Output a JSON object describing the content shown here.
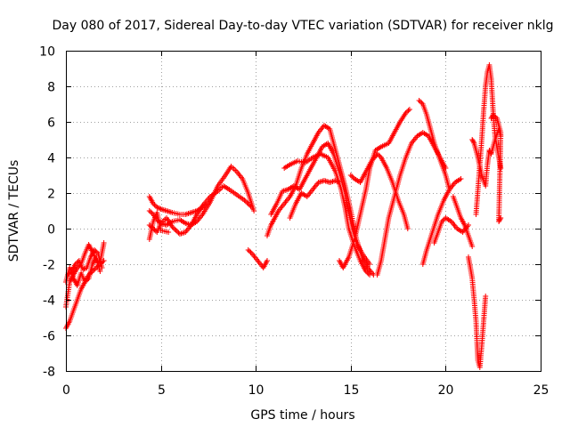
{
  "chart_data": {
    "type": "scatter",
    "title": "Day 080 of 2017, Sidereal Day-to-day VTEC variation (SDTVAR) for receiver nklg",
    "xlabel": "GPS time / hours",
    "ylabel": "SDTVAR / TECUs",
    "xlim": [
      0,
      25
    ],
    "ylim": [
      -8,
      10
    ],
    "xticks": [
      0,
      5,
      10,
      15,
      20,
      25
    ],
    "yticks": [
      -8,
      -6,
      -4,
      -2,
      0,
      2,
      4,
      6,
      8,
      10
    ],
    "grid": true,
    "marker": "+",
    "color": "#ff0000",
    "series": [
      {
        "name": "SDTVAR",
        "color": "#ff0000",
        "tracks": [
          [
            [
              0.0,
              -5.6
            ],
            [
              0.2,
              -5.2
            ],
            [
              0.4,
              -4.6
            ],
            [
              0.6,
              -4.0
            ],
            [
              0.8,
              -3.4
            ],
            [
              1.0,
              -3.0
            ],
            [
              1.2,
              -2.6
            ],
            [
              1.4,
              -2.4
            ],
            [
              1.6,
              -2.2
            ],
            [
              1.8,
              -2.0
            ],
            [
              2.0,
              -1.8
            ]
          ],
          [
            [
              0.0,
              -4.4
            ],
            [
              0.2,
              -3.0
            ],
            [
              0.4,
              -2.6
            ],
            [
              0.6,
              -2.2
            ],
            [
              0.8,
              -2.0
            ],
            [
              1.0,
              -1.4
            ],
            [
              1.2,
              -0.9
            ],
            [
              1.4,
              -1.3
            ],
            [
              1.6,
              -1.8
            ],
            [
              1.8,
              -1.9
            ],
            [
              2.0,
              -0.8
            ]
          ],
          [
            [
              0.0,
              -3.0
            ],
            [
              0.2,
              -2.2
            ],
            [
              0.4,
              -2.8
            ],
            [
              0.6,
              -3.2
            ],
            [
              0.8,
              -2.5
            ],
            [
              1.0,
              -3.0
            ],
            [
              1.2,
              -2.8
            ],
            [
              1.4,
              -2.0
            ],
            [
              1.6,
              -1.6
            ],
            [
              1.8,
              -2.4
            ]
          ],
          [
            [
              0.1,
              -2.6
            ],
            [
              0.3,
              -2.4
            ],
            [
              0.5,
              -2.0
            ],
            [
              0.7,
              -1.8
            ],
            [
              0.9,
              -2.3
            ],
            [
              1.1,
              -2.2
            ],
            [
              1.3,
              -1.6
            ],
            [
              1.5,
              -1.2
            ],
            [
              1.7,
              -1.4
            ],
            [
              1.9,
              -2.2
            ]
          ],
          [
            [
              4.4,
              1.8
            ],
            [
              4.6,
              1.4
            ],
            [
              4.8,
              1.2
            ],
            [
              5.0,
              1.1
            ],
            [
              5.3,
              1.0
            ],
            [
              5.6,
              0.9
            ],
            [
              6.0,
              0.8
            ],
            [
              6.3,
              0.8
            ],
            [
              6.6,
              0.9
            ],
            [
              6.9,
              1.0
            ],
            [
              7.2,
              1.2
            ],
            [
              7.4,
              1.4
            ]
          ],
          [
            [
              4.4,
              1.0
            ],
            [
              4.6,
              0.8
            ],
            [
              4.8,
              0.5
            ],
            [
              5.0,
              0.3
            ],
            [
              5.3,
              0.2
            ],
            [
              5.6,
              0.4
            ],
            [
              6.0,
              0.5
            ],
            [
              6.3,
              0.3
            ],
            [
              6.6,
              0.2
            ],
            [
              6.9,
              0.4
            ],
            [
              7.2,
              0.8
            ],
            [
              7.6,
              1.5
            ],
            [
              8.0,
              2.4
            ],
            [
              8.4,
              3.0
            ],
            [
              8.7,
              3.5
            ],
            [
              9.0,
              3.2
            ],
            [
              9.3,
              2.8
            ],
            [
              9.6,
              2.0
            ],
            [
              9.9,
              1.0
            ]
          ],
          [
            [
              4.4,
              0.2
            ],
            [
              4.6,
              0.0
            ],
            [
              4.8,
              -0.2
            ],
            [
              5.0,
              0.3
            ],
            [
              5.3,
              0.6
            ],
            [
              5.6,
              0.1
            ],
            [
              6.0,
              -0.3
            ],
            [
              6.3,
              -0.2
            ],
            [
              6.6,
              0.2
            ],
            [
              6.9,
              0.8
            ],
            [
              7.2,
              1.3
            ],
            [
              7.6,
              1.8
            ],
            [
              8.0,
              2.1
            ],
            [
              8.3,
              2.4
            ],
            [
              8.6,
              2.2
            ],
            [
              9.0,
              1.9
            ],
            [
              9.4,
              1.6
            ],
            [
              9.8,
              1.2
            ]
          ],
          [
            [
              4.4,
              -0.6
            ],
            [
              4.6,
              0.4
            ],
            [
              4.8,
              0.9
            ],
            [
              5.0,
              -0.1
            ],
            [
              5.4,
              -0.2
            ]
          ],
          [
            [
              9.6,
              -1.2
            ],
            [
              9.8,
              -1.4
            ],
            [
              10.4,
              -2.2
            ],
            [
              10.6,
              -1.8
            ]
          ],
          [
            [
              10.6,
              -0.4
            ],
            [
              10.8,
              0.2
            ],
            [
              11.0,
              0.6
            ],
            [
              11.2,
              1.0
            ],
            [
              11.5,
              1.4
            ],
            [
              11.8,
              1.8
            ],
            [
              12.1,
              2.4
            ],
            [
              12.4,
              3.4
            ],
            [
              12.7,
              4.2
            ],
            [
              13.0,
              4.8
            ],
            [
              13.3,
              5.4
            ],
            [
              13.6,
              5.8
            ],
            [
              13.9,
              5.6
            ],
            [
              14.1,
              4.8
            ],
            [
              14.4,
              3.6
            ],
            [
              14.7,
              2.4
            ],
            [
              15.0,
              1.0
            ],
            [
              15.3,
              -0.6
            ],
            [
              15.6,
              -1.6
            ],
            [
              15.9,
              -2.2
            ],
            [
              16.2,
              -2.6
            ]
          ],
          [
            [
              10.8,
              0.8
            ],
            [
              11.1,
              1.4
            ],
            [
              11.4,
              2.1
            ],
            [
              11.7,
              2.2
            ],
            [
              12.0,
              2.4
            ],
            [
              12.3,
              2.2
            ],
            [
              12.6,
              2.8
            ],
            [
              12.9,
              3.4
            ],
            [
              13.2,
              4.0
            ],
            [
              13.5,
              4.6
            ],
            [
              13.8,
              4.8
            ],
            [
              14.1,
              4.2
            ],
            [
              14.4,
              3.2
            ],
            [
              14.7,
              2.0
            ],
            [
              15.0,
              0.4
            ],
            [
              15.3,
              -0.8
            ],
            [
              15.6,
              -1.4
            ],
            [
              16.0,
              -2.0
            ]
          ],
          [
            [
              11.8,
              0.6
            ],
            [
              12.1,
              1.4
            ],
            [
              12.4,
              2.0
            ],
            [
              12.7,
              1.8
            ],
            [
              13.0,
              2.2
            ],
            [
              13.3,
              2.6
            ],
            [
              13.6,
              2.7
            ],
            [
              13.9,
              2.6
            ],
            [
              14.2,
              2.7
            ],
            [
              14.4,
              2.6
            ]
          ],
          [
            [
              11.5,
              3.4
            ],
            [
              11.8,
              3.6
            ],
            [
              12.2,
              3.8
            ],
            [
              12.6,
              3.7
            ],
            [
              13.0,
              4.0
            ],
            [
              13.4,
              4.2
            ],
            [
              13.8,
              4.0
            ],
            [
              14.2,
              3.2
            ],
            [
              14.5,
              2.2
            ],
            [
              14.7,
              1.2
            ],
            [
              14.9,
              0.0
            ],
            [
              15.2,
              -1.0
            ],
            [
              15.5,
              -1.8
            ],
            [
              15.8,
              -2.4
            ],
            [
              16.0,
              -2.6
            ]
          ],
          [
            [
              14.4,
              -1.8
            ],
            [
              14.6,
              -2.2
            ],
            [
              14.9,
              -1.6
            ],
            [
              15.2,
              -0.6
            ],
            [
              15.5,
              0.8
            ],
            [
              15.8,
              2.2
            ],
            [
              16.0,
              3.4
            ],
            [
              16.3,
              4.4
            ],
            [
              16.6,
              4.6
            ],
            [
              17.0,
              4.8
            ],
            [
              17.3,
              5.4
            ],
            [
              17.6,
              6.0
            ],
            [
              17.9,
              6.5
            ],
            [
              18.1,
              6.7
            ]
          ],
          [
            [
              15.0,
              3.0
            ],
            [
              15.2,
              2.8
            ],
            [
              15.5,
              2.6
            ],
            [
              15.8,
              3.2
            ],
            [
              16.1,
              3.8
            ],
            [
              16.4,
              4.2
            ],
            [
              16.6,
              4.0
            ],
            [
              16.9,
              3.4
            ],
            [
              17.2,
              2.6
            ],
            [
              17.5,
              1.6
            ],
            [
              17.8,
              0.8
            ],
            [
              18.0,
              0.0
            ]
          ],
          [
            [
              16.4,
              -2.6
            ],
            [
              16.6,
              -1.8
            ],
            [
              16.8,
              -0.6
            ],
            [
              17.0,
              0.6
            ],
            [
              17.3,
              1.8
            ],
            [
              17.6,
              3.0
            ],
            [
              17.9,
              4.0
            ],
            [
              18.2,
              4.8
            ],
            [
              18.5,
              5.2
            ],
            [
              18.8,
              5.4
            ],
            [
              19.1,
              5.2
            ],
            [
              19.4,
              4.6
            ],
            [
              19.7,
              4.0
            ],
            [
              20.0,
              3.4
            ]
          ],
          [
            [
              18.6,
              7.2
            ],
            [
              18.8,
              7.0
            ],
            [
              19.0,
              6.4
            ],
            [
              19.2,
              5.6
            ],
            [
              19.4,
              4.8
            ],
            [
              19.6,
              4.2
            ],
            [
              19.8,
              3.6
            ],
            [
              20.0,
              3.0
            ],
            [
              20.2,
              2.2
            ]
          ],
          [
            [
              18.8,
              -2.0
            ],
            [
              19.0,
              -1.2
            ],
            [
              19.3,
              -0.2
            ],
            [
              19.6,
              0.8
            ],
            [
              19.9,
              1.6
            ],
            [
              20.2,
              2.2
            ],
            [
              20.5,
              2.6
            ],
            [
              20.8,
              2.8
            ]
          ],
          [
            [
              19.4,
              -0.8
            ],
            [
              19.6,
              -0.2
            ],
            [
              19.8,
              0.4
            ],
            [
              20.0,
              0.6
            ],
            [
              20.3,
              0.4
            ],
            [
              20.6,
              0.0
            ],
            [
              20.9,
              -0.2
            ],
            [
              21.2,
              0.2
            ]
          ],
          [
            [
              20.4,
              1.8
            ],
            [
              20.6,
              1.2
            ],
            [
              20.8,
              0.6
            ],
            [
              21.0,
              0.2
            ],
            [
              21.2,
              -0.4
            ],
            [
              21.4,
              -1.0
            ]
          ],
          [
            [
              21.2,
              -1.6
            ],
            [
              21.4,
              -2.8
            ],
            [
              21.5,
              -4.0
            ],
            [
              21.6,
              -5.2
            ],
            [
              21.65,
              -6.4
            ],
            [
              21.7,
              -7.4
            ],
            [
              21.8,
              -7.8
            ],
            [
              21.9,
              -6.6
            ],
            [
              22.0,
              -5.2
            ],
            [
              22.1,
              -3.8
            ]
          ],
          [
            [
              21.6,
              0.8
            ],
            [
              21.7,
              2.2
            ],
            [
              21.8,
              3.6
            ],
            [
              21.9,
              5.0
            ],
            [
              22.0,
              6.6
            ],
            [
              22.1,
              8.0
            ],
            [
              22.2,
              8.8
            ],
            [
              22.3,
              9.2
            ],
            [
              22.4,
              8.4
            ],
            [
              22.5,
              6.6
            ],
            [
              22.6,
              5.2
            ],
            [
              22.7,
              4.6
            ],
            [
              22.8,
              4.0
            ],
            [
              22.9,
              3.4
            ]
          ],
          [
            [
              21.4,
              5.0
            ],
            [
              21.5,
              4.8
            ],
            [
              21.7,
              4.0
            ],
            [
              21.9,
              3.0
            ],
            [
              22.1,
              2.4
            ],
            [
              22.2,
              3.6
            ],
            [
              22.3,
              4.4
            ],
            [
              22.4,
              4.2
            ],
            [
              22.6,
              5.0
            ],
            [
              22.8,
              5.6
            ],
            [
              22.9,
              5.2
            ]
          ],
          [
            [
              22.4,
              6.2
            ],
            [
              22.5,
              6.4
            ],
            [
              22.7,
              6.2
            ],
            [
              22.9,
              5.4
            ],
            [
              22.8,
              0.4
            ],
            [
              22.9,
              0.6
            ]
          ]
        ]
      }
    ]
  }
}
